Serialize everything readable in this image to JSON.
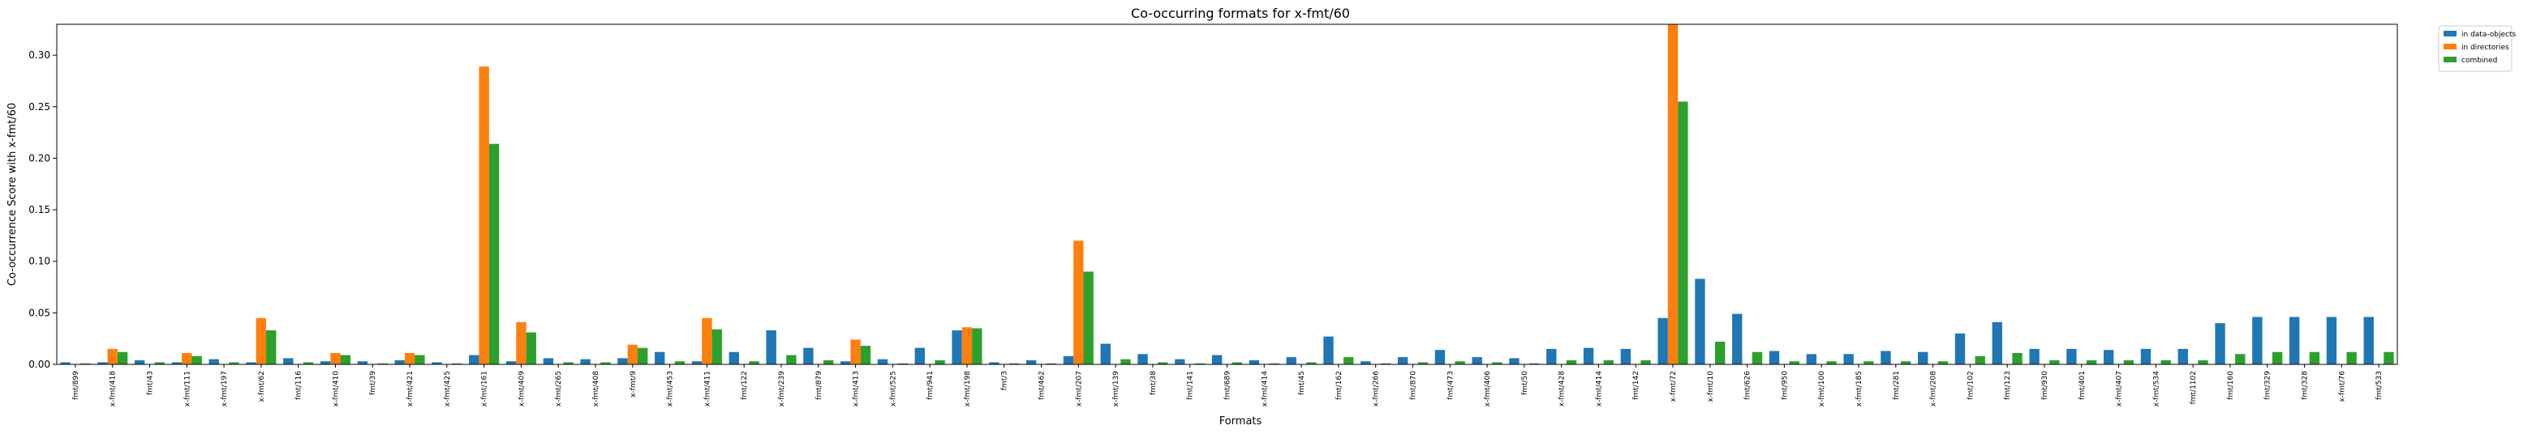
{
  "chart_data": {
    "type": "bar",
    "title": "Co-occurring formats for x-fmt/60",
    "xlabel": "Formats",
    "ylabel": "Co-occurrence Score with x-fmt/60",
    "ylim": [
      0,
      0.33
    ],
    "yticks": [
      "0.00",
      "0.05",
      "0.10",
      "0.15",
      "0.20",
      "0.25",
      "0.30"
    ],
    "legend_position": "upper-right-outside",
    "categories": [
      "fmt/899",
      "x-fmt/418",
      "fmt/43",
      "x-fmt/111",
      "x-fmt/197",
      "x-fmt/62",
      "fmt/116",
      "x-fmt/410",
      "fmt/39",
      "x-fmt/421",
      "x-fmt/425",
      "x-fmt/161",
      "x-fmt/409",
      "x-fmt/265",
      "x-fmt/408",
      "x-fmt/9",
      "x-fmt/453",
      "x-fmt/411",
      "fmt/122",
      "x-fmt/239",
      "fmt/879",
      "x-fmt/413",
      "x-fmt/525",
      "fmt/941",
      "x-fmt/198",
      "fmt/3",
      "fmt/462",
      "x-fmt/207",
      "x-fmt/139",
      "fmt/38",
      "fmt/141",
      "fmt/689",
      "x-fmt/414",
      "fmt/45",
      "fmt/162",
      "x-fmt/266",
      "fmt/870",
      "fmt/473",
      "x-fmt/406",
      "fmt/50",
      "x-fmt/428",
      "x-fmt/414",
      "fmt/142",
      "x-fmt/72",
      "x-fmt/10",
      "fmt/626",
      "fmt/950",
      "x-fmt/100",
      "x-fmt/185",
      "fmt/281",
      "x-fmt/208",
      "fmt/102",
      "fmt/123",
      "fmt/930",
      "fmt/401",
      "x-fmt/407",
      "x-fmt/534",
      "fmt/1102",
      "fmt/160",
      "fmt/329",
      "fmt/328",
      "x-fmt/76",
      "fmt/533"
    ],
    "series": [
      {
        "name": "in data-objects",
        "color": "#1f77b4",
        "values": [
          0.002,
          0.002,
          0.004,
          0.002,
          0.005,
          0.002,
          0.006,
          0.003,
          0.003,
          0.004,
          0.002,
          0.009,
          0.003,
          0.006,
          0.005,
          0.006,
          0.012,
          0.003,
          0.012,
          0.033,
          0.016,
          0.003,
          0.005,
          0.016,
          0.033,
          0.002,
          0.004,
          0.008,
          0.02,
          0.01,
          0.005,
          0.009,
          0.004,
          0.007,
          0.027,
          0.003,
          0.007,
          0.014,
          0.007,
          0.006,
          0.015,
          0.016,
          0.015,
          0.045,
          0.083,
          0.049,
          0.013,
          0.01,
          0.01,
          0.013,
          0.012,
          0.03,
          0.041,
          0.015,
          0.015,
          0.014,
          0.015,
          0.015,
          0.04,
          0.046,
          0.046,
          0.046,
          0.046
        ]
      },
      {
        "name": "in directories",
        "color": "#ff7f0e",
        "values": [
          0.0,
          0.015,
          0.0,
          0.011,
          0.0,
          0.045,
          0.0,
          0.011,
          0.0,
          0.011,
          0.0,
          0.289,
          0.041,
          0.0,
          0.0,
          0.019,
          0.0,
          0.045,
          0.0,
          0.0,
          0.0,
          0.024,
          0.0,
          0.0,
          0.036,
          0.0,
          0.0,
          0.12,
          0.0,
          0.0,
          0.0,
          0.0,
          0.0,
          0.0,
          0.0,
          0.0,
          0.0,
          0.0,
          0.0,
          0.0,
          0.0,
          0.0,
          0.0,
          0.33,
          0.0,
          0.0,
          0.0,
          0.0,
          0.0,
          0.0,
          0.0,
          0.0,
          0.0,
          0.0,
          0.0,
          0.0,
          0.0,
          0.0,
          0.0,
          0.0,
          0.0,
          0.0,
          0.0
        ]
      },
      {
        "name": "combined",
        "color": "#2ca02c",
        "values": [
          0.001,
          0.012,
          0.002,
          0.008,
          0.002,
          0.033,
          0.002,
          0.009,
          0.001,
          0.009,
          0.001,
          0.214,
          0.031,
          0.002,
          0.002,
          0.016,
          0.003,
          0.034,
          0.003,
          0.009,
          0.004,
          0.018,
          0.001,
          0.004,
          0.035,
          0.001,
          0.001,
          0.09,
          0.005,
          0.002,
          0.001,
          0.002,
          0.001,
          0.002,
          0.007,
          0.001,
          0.002,
          0.003,
          0.002,
          0.001,
          0.004,
          0.004,
          0.004,
          0.255,
          0.022,
          0.012,
          0.003,
          0.003,
          0.003,
          0.003,
          0.003,
          0.008,
          0.011,
          0.004,
          0.004,
          0.004,
          0.004,
          0.004,
          0.01,
          0.012,
          0.012,
          0.012,
          0.012
        ]
      }
    ]
  }
}
